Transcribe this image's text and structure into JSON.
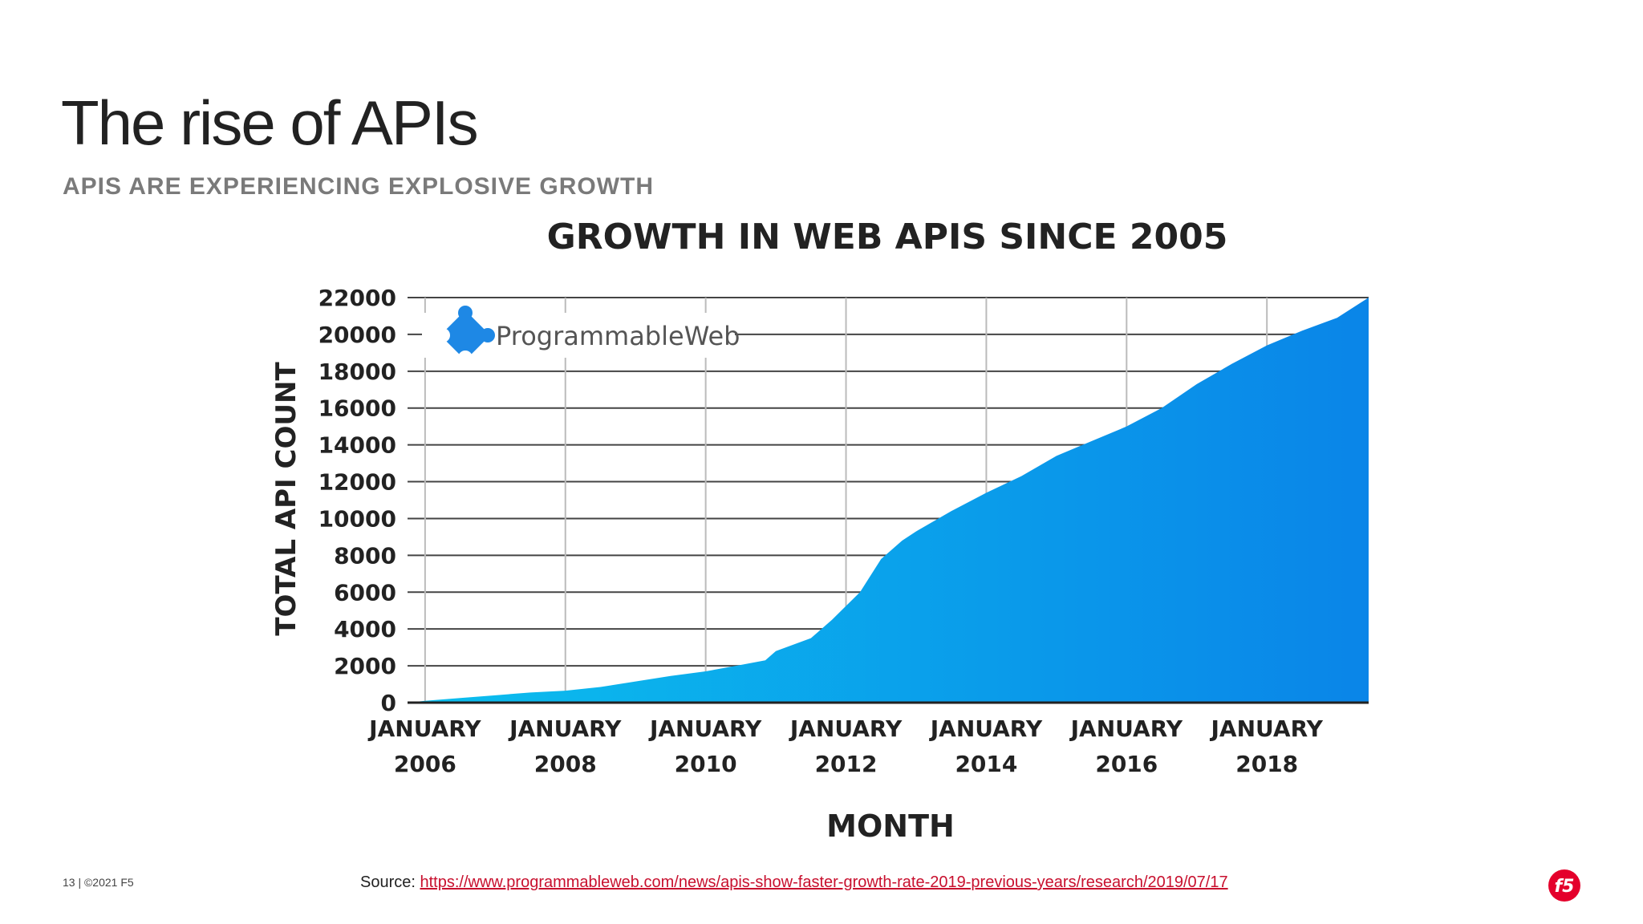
{
  "slide": {
    "title": "The rise of APIs",
    "subtitle": "APIS ARE EXPERIENCING EXPLOSIVE GROWTH"
  },
  "logo": {
    "text": "ProgrammableWeb",
    "icon": "puzzle-piece-icon",
    "color": "#1e88e5"
  },
  "footer": {
    "page": "13 | ©2021 F5",
    "source_label": "Source: ",
    "source_link": "https://www.programmableweb.com/news/apis-show-faster-growth-rate-2019-previous-years/research/2019/07/17",
    "brand_icon": "f5-logo-icon",
    "brand_color": "#e4002b"
  },
  "chart_data": {
    "type": "area",
    "title": "GROWTH IN WEB APIS SINCE 2005",
    "xlabel": "MONTH",
    "ylabel": "TOTAL API COUNT",
    "ylim": [
      0,
      22000
    ],
    "xlim": [
      2005.75,
      2019.45
    ],
    "yticks": [
      0,
      2000,
      4000,
      6000,
      8000,
      10000,
      12000,
      14000,
      16000,
      18000,
      20000,
      22000
    ],
    "xticks": [
      {
        "x": 2006,
        "line1": "JANUARY",
        "line2": "2006"
      },
      {
        "x": 2008,
        "line1": "JANUARY",
        "line2": "2008"
      },
      {
        "x": 2010,
        "line1": "JANUARY",
        "line2": "2010"
      },
      {
        "x": 2012,
        "line1": "JANUARY",
        "line2": "2012"
      },
      {
        "x": 2014,
        "line1": "JANUARY",
        "line2": "2014"
      },
      {
        "x": 2016,
        "line1": "JANUARY",
        "line2": "2016"
      },
      {
        "x": 2018,
        "line1": "JANUARY",
        "line2": "2018"
      }
    ],
    "grid": true,
    "fill_colors": [
      "#0bbfee",
      "#0a85e8"
    ],
    "series": [
      {
        "name": "Total API Count",
        "x": [
          2005.75,
          2006,
          2006.5,
          2007,
          2007.5,
          2008,
          2008.5,
          2009,
          2009.5,
          2010,
          2010.5,
          2010.85,
          2011,
          2011.5,
          2011.8,
          2012.2,
          2012.5,
          2012.8,
          2013.0,
          2013.5,
          2014.0,
          2014.5,
          2015.0,
          2015.5,
          2016.0,
          2016.5,
          2017.0,
          2017.5,
          2018.0,
          2018.5,
          2019.0,
          2019.45
        ],
        "y": [
          0,
          100,
          250,
          400,
          550,
          650,
          850,
          1150,
          1450,
          1700,
          2050,
          2300,
          2800,
          3500,
          4500,
          6000,
          7800,
          8800,
          9300,
          10400,
          11400,
          12300,
          13400,
          14200,
          15000,
          16000,
          17300,
          18400,
          19400,
          20200,
          20900,
          22000
        ]
      }
    ]
  }
}
